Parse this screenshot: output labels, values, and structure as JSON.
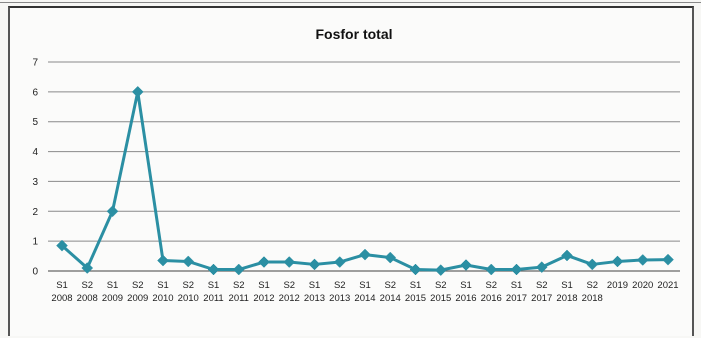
{
  "chart_data": {
    "type": "line",
    "title": "Fosfor total",
    "xlabel": "",
    "ylabel": "",
    "ylim": [
      0,
      7
    ],
    "yticks": [
      0,
      1,
      2,
      3,
      4,
      5,
      6,
      7
    ],
    "grid": true,
    "legend": "none",
    "line_color": "#2b8fa3",
    "categories": [
      [
        "S1",
        "2008"
      ],
      [
        "S2",
        "2008"
      ],
      [
        "S1",
        "2009"
      ],
      [
        "S2",
        "2009"
      ],
      [
        "S1",
        "2010"
      ],
      [
        "S2",
        "2010"
      ],
      [
        "S1",
        "2011"
      ],
      [
        "S2",
        "2011"
      ],
      [
        "S1",
        "2012"
      ],
      [
        "S2",
        "2012"
      ],
      [
        "S1",
        "2013"
      ],
      [
        "S2",
        "2013"
      ],
      [
        "S1",
        "2014"
      ],
      [
        "S2",
        "2014"
      ],
      [
        "S1",
        "2015"
      ],
      [
        "S2",
        "2015"
      ],
      [
        "S1",
        "2016"
      ],
      [
        "S2",
        "2016"
      ],
      [
        "S1",
        "2017"
      ],
      [
        "S2",
        "2017"
      ],
      [
        "S1",
        "2018"
      ],
      [
        "S2",
        "2018"
      ],
      [
        "",
        "2019"
      ],
      [
        "",
        "2020"
      ],
      [
        "",
        "2021"
      ]
    ],
    "values": [
      0.85,
      0.1,
      2.0,
      6.0,
      0.35,
      0.32,
      0.05,
      0.05,
      0.3,
      0.3,
      0.22,
      0.3,
      0.55,
      0.45,
      0.05,
      0.03,
      0.2,
      0.05,
      0.05,
      0.13,
      0.52,
      0.22,
      0.32,
      0.37,
      0.38
    ]
  }
}
